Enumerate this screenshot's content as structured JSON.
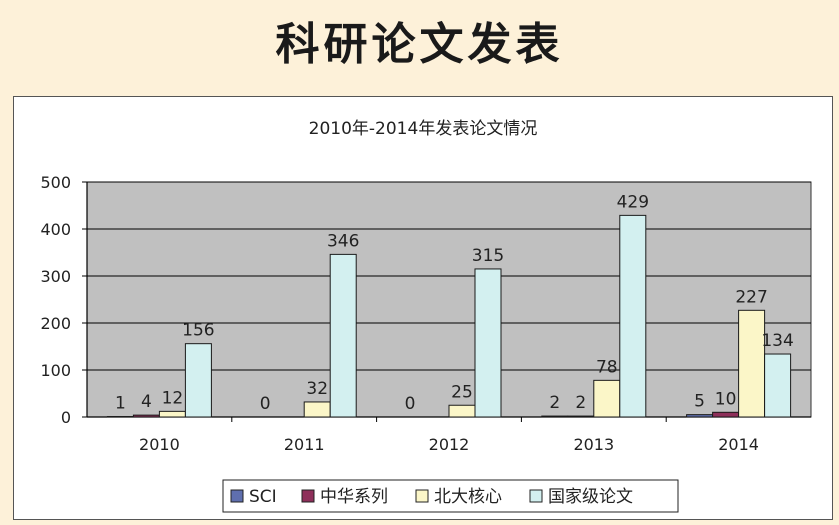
{
  "page": {
    "title": "科研论文发表"
  },
  "chart_data": {
    "type": "bar",
    "title": "2010年-2014年发表论文情况",
    "categories": [
      "2010",
      "2011",
      "2012",
      "2013",
      "2014"
    ],
    "ylim": [
      0,
      500
    ],
    "yticks": [
      0,
      100,
      200,
      300,
      400,
      500
    ],
    "grid": true,
    "legend_position": "bottom",
    "series": [
      {
        "name": "SCI",
        "color": "#5f6fae",
        "values": [
          1,
          0,
          0,
          2,
          5
        ]
      },
      {
        "name": "中华系列",
        "color": "#8e2f5a",
        "values": [
          4,
          null,
          null,
          2,
          10
        ]
      },
      {
        "name": "北大核心",
        "color": "#fbf6c8",
        "values": [
          12,
          32,
          25,
          78,
          227
        ]
      },
      {
        "name": "国家级论文",
        "color": "#d3f0f0",
        "values": [
          156,
          346,
          315,
          429,
          134
        ]
      }
    ],
    "plot_background": "#c0c0c0"
  }
}
